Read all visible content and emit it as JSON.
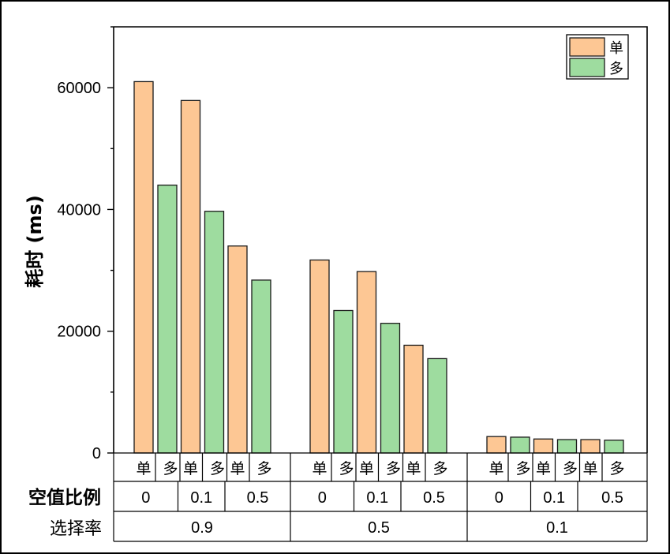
{
  "chart_data": {
    "type": "bar",
    "ylabel": "耗时 (ms)",
    "ylim": [
      0,
      70000
    ],
    "yticks": [
      "0",
      "20000",
      "40000",
      "60000"
    ],
    "legend_position": "top-right",
    "series": [
      {
        "name": "单",
        "color": "#fdc794",
        "values": [
          61000,
          57900,
          34000,
          31700,
          29800,
          17700,
          2700,
          2300,
          2200
        ]
      },
      {
        "name": "多",
        "color": "#9edc9f",
        "values": [
          44000,
          39700,
          28400,
          23400,
          21300,
          15500,
          2600,
          2200,
          2100
        ]
      }
    ],
    "row1_labels": [
      "单",
      "多",
      "单",
      "多",
      "单",
      "多",
      "单",
      "多",
      "单",
      "多",
      "单",
      "多",
      "单",
      "多",
      "单",
      "多",
      "单",
      "多"
    ],
    "row2_title": "空值比例",
    "row2_labels": [
      "0",
      "0.1",
      "0.5",
      "0",
      "0.1",
      "0.5",
      "0",
      "0.1",
      "0.5"
    ],
    "row3_title": "选择率",
    "row3_labels": [
      "0.9",
      "0.5",
      "0.1"
    ]
  }
}
